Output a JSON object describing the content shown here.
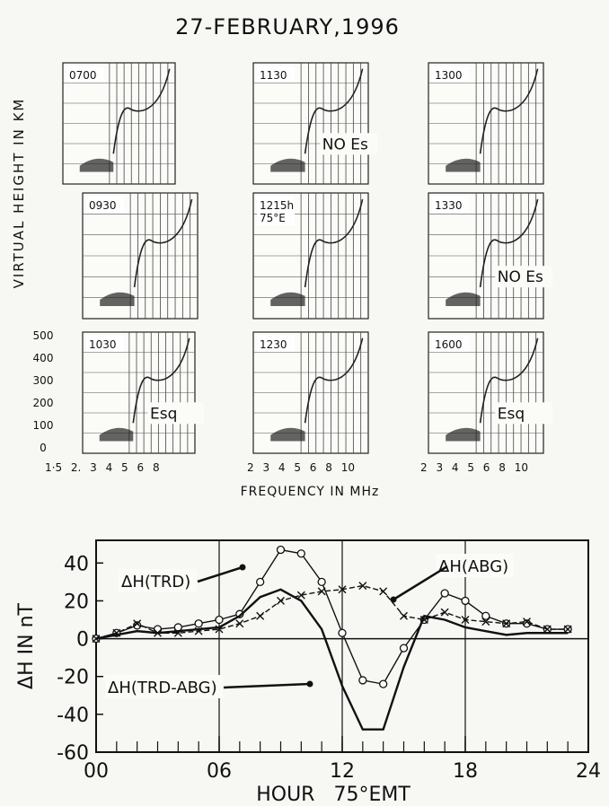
{
  "title": "27-FEBRUARY,1996",
  "ionograms": {
    "y_label": "VIRTUAL HEIGHT IN KM",
    "x_label": "FREQUENCY IN MHz",
    "height_ticks": [
      "500",
      "400",
      "300",
      "200",
      "100",
      "0"
    ],
    "freq_labels": [
      "1·5 2. 3 4 5 6 8",
      "2 3 4 5 6 8 10",
      "2 3 4 5 6 8 10"
    ],
    "panels": [
      {
        "time": "0700"
      },
      {
        "time": "1130",
        "note": "NO Es"
      },
      {
        "time": "1300"
      },
      {
        "time": "0930"
      },
      {
        "time": "1215h",
        "sub": "75°E"
      },
      {
        "time": "1330",
        "note": "NO Es"
      },
      {
        "time": "1030",
        "note": "Esq"
      },
      {
        "time": "1230"
      },
      {
        "time": "1600",
        "note": "Esq"
      }
    ]
  },
  "chart_data": {
    "type": "line",
    "y_label": "ΔH IN nT",
    "x_label": "HOUR 75°EMT",
    "x": [
      0,
      1,
      2,
      3,
      4,
      5,
      6,
      7,
      8,
      9,
      10,
      11,
      12,
      13,
      14,
      15,
      16,
      17,
      18,
      19,
      20,
      21,
      22,
      23
    ],
    "series": [
      {
        "name": "ΔH(TRD)",
        "color": "#111111",
        "marker": "o",
        "values": [
          0,
          3,
          7,
          5,
          6,
          8,
          10,
          13,
          30,
          47,
          45,
          30,
          3,
          -22,
          -24,
          -5,
          10,
          24,
          20,
          12,
          8,
          8,
          5,
          5
        ]
      },
      {
        "name": "ΔH(ABG)",
        "color": "#111111",
        "marker": "x",
        "values": [
          0,
          3,
          8,
          3,
          3,
          4,
          5,
          8,
          12,
          20,
          23,
          25,
          26,
          28,
          25,
          12,
          10,
          14,
          10,
          9,
          8,
          9,
          5,
          5
        ]
      },
      {
        "name": "ΔH(TRD-ABG)",
        "color": "#111111",
        "marker": "none",
        "values": [
          0,
          2,
          4,
          3,
          4,
          5,
          6,
          12,
          22,
          26,
          20,
          5,
          -25,
          -48,
          -48,
          -15,
          12,
          10,
          6,
          4,
          2,
          3,
          3,
          3
        ]
      }
    ],
    "xlim": [
      0,
      24
    ],
    "xticks": [
      {
        "value": 0,
        "label": "00"
      },
      {
        "value": 6,
        "label": "06"
      },
      12,
      18,
      24
    ],
    "ylim": [
      -60,
      52
    ],
    "yticks": [
      40,
      20,
      0,
      -20,
      -40,
      -60
    ]
  }
}
